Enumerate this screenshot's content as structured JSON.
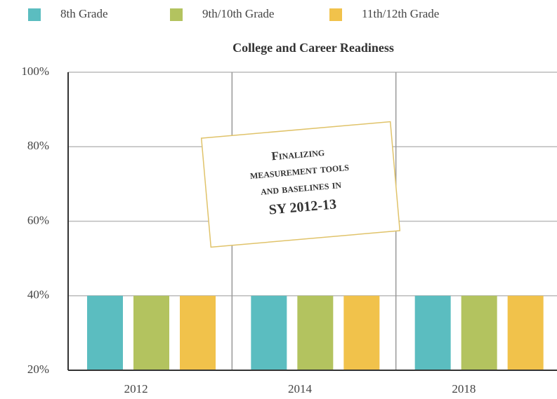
{
  "chart_data": {
    "type": "bar",
    "title": "College and Career Readiness",
    "categories": [
      "2012",
      "2014",
      "2018"
    ],
    "series": [
      {
        "name": "8th Grade",
        "color": "#5bbdc0",
        "values": [
          40,
          40,
          40
        ]
      },
      {
        "name": "9th/10th Grade",
        "color": "#b3c35f",
        "values": [
          40,
          40,
          40
        ]
      },
      {
        "name": "11th/12th Grade",
        "color": "#f1c24b",
        "values": [
          40,
          40,
          40
        ]
      }
    ],
    "ylim": [
      20,
      100
    ],
    "yticks": [
      {
        "value": 20,
        "label": "20%"
      },
      {
        "value": 40,
        "label": "40%"
      },
      {
        "value": 60,
        "label": "60%"
      },
      {
        "value": 80,
        "label": "80%"
      },
      {
        "value": 100,
        "label": "100%"
      }
    ],
    "grid": true,
    "legend": "top",
    "annotation": [
      "Finalizing",
      "measurement tools",
      "and baselines in",
      "SY 2012-13"
    ]
  }
}
